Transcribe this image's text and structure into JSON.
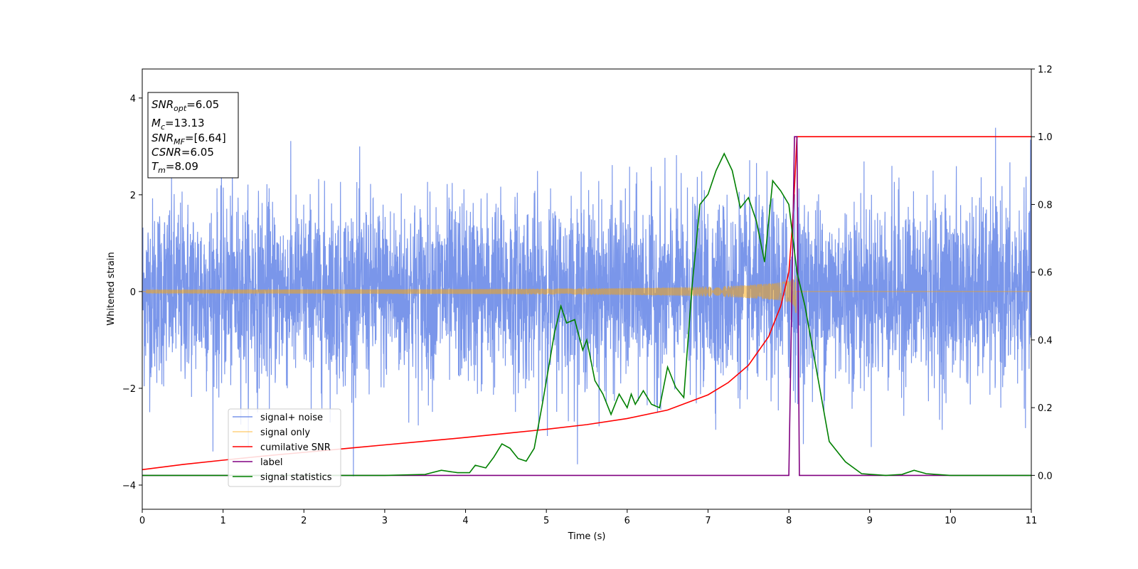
{
  "chart_data": {
    "type": "line",
    "xlabel": "Time (s)",
    "ylabel_left": "Whitened strain",
    "ylabel_right": "",
    "xlim": [
      0,
      11
    ],
    "ylim_left": [
      -4.5,
      4.6
    ],
    "ylim_right": [
      -0.1,
      1.2
    ],
    "xticks": [
      "0",
      "1",
      "2",
      "3",
      "4",
      "5",
      "6",
      "7",
      "8",
      "9",
      "10",
      "11"
    ],
    "yticks_left": [
      "−4",
      "−2",
      "0",
      "2",
      "4"
    ],
    "yticks_right": [
      "0.0",
      "0.2",
      "0.4",
      "0.6",
      "0.8",
      "1.0",
      "1.2"
    ],
    "grid": false,
    "legend_position": "lower-left",
    "annotation": {
      "lines": [
        {
          "main": "SNR",
          "sub": "opt",
          "rest": "=6.05"
        },
        {
          "main": "M",
          "sub": "c",
          "rest": "=13.13"
        },
        {
          "main": "SNR",
          "sub": "MF",
          "rest": "=[6.64]"
        },
        {
          "main": "CSNR",
          "sub": "",
          "rest": "=6.05"
        },
        {
          "main": "T",
          "sub": "m",
          "rest": "=8.09"
        }
      ]
    },
    "series": [
      {
        "name": "signal+ noise",
        "axis": "left",
        "color": "#4169e1",
        "opacity": 0.7,
        "style": "noise",
        "noise_std": 0.95,
        "noise_max": 4.18,
        "noise_min": -4.02,
        "sample_rate_hz": 400
      },
      {
        "name": "signal only",
        "axis": "left",
        "color": "#ffa500",
        "opacity": 0.5,
        "style": "chirp",
        "t_merge": 8.09,
        "amplitude_max": 0.5
      },
      {
        "name": "cumilative SNR",
        "axis": "right",
        "color": "#ff0000",
        "points": [
          [
            0,
            0.017
          ],
          [
            0.5,
            0.032
          ],
          [
            1,
            0.045
          ],
          [
            1.5,
            0.057
          ],
          [
            2,
            0.068
          ],
          [
            2.5,
            0.079
          ],
          [
            3,
            0.09
          ],
          [
            3.5,
            0.101
          ],
          [
            4,
            0.112
          ],
          [
            4.5,
            0.124
          ],
          [
            5,
            0.136
          ],
          [
            5.5,
            0.15
          ],
          [
            6,
            0.168
          ],
          [
            6.5,
            0.193
          ],
          [
            7,
            0.238
          ],
          [
            7.25,
            0.274
          ],
          [
            7.5,
            0.325
          ],
          [
            7.75,
            0.41
          ],
          [
            7.9,
            0.5
          ],
          [
            8,
            0.6
          ],
          [
            8.05,
            0.76
          ],
          [
            8.08,
            0.9
          ],
          [
            8.1,
            1.0
          ],
          [
            11,
            1.0
          ]
        ]
      },
      {
        "name": "label",
        "axis": "right",
        "color": "#800080",
        "points": [
          [
            0,
            0
          ],
          [
            8.0,
            0
          ],
          [
            8.07,
            1.0
          ],
          [
            8.1,
            1.0
          ],
          [
            8.13,
            0
          ],
          [
            11,
            0
          ]
        ]
      },
      {
        "name": "signal statistics",
        "axis": "right",
        "color": "#008000",
        "points": [
          [
            0,
            0.0
          ],
          [
            1,
            0.0
          ],
          [
            2,
            0.0
          ],
          [
            2.5,
            0.0
          ],
          [
            3,
            0.0
          ],
          [
            3.5,
            0.003
          ],
          [
            3.7,
            0.015
          ],
          [
            3.9,
            0.008
          ],
          [
            4.05,
            0.008
          ],
          [
            4.12,
            0.03
          ],
          [
            4.25,
            0.022
          ],
          [
            4.35,
            0.054
          ],
          [
            4.45,
            0.093
          ],
          [
            4.55,
            0.08
          ],
          [
            4.65,
            0.05
          ],
          [
            4.75,
            0.042
          ],
          [
            4.85,
            0.08
          ],
          [
            4.95,
            0.21
          ],
          [
            5.05,
            0.35
          ],
          [
            5.1,
            0.42
          ],
          [
            5.18,
            0.5
          ],
          [
            5.25,
            0.45
          ],
          [
            5.35,
            0.46
          ],
          [
            5.45,
            0.37
          ],
          [
            5.5,
            0.4
          ],
          [
            5.6,
            0.28
          ],
          [
            5.7,
            0.24
          ],
          [
            5.8,
            0.18
          ],
          [
            5.9,
            0.24
          ],
          [
            6.0,
            0.2
          ],
          [
            6.05,
            0.24
          ],
          [
            6.1,
            0.21
          ],
          [
            6.2,
            0.25
          ],
          [
            6.3,
            0.21
          ],
          [
            6.4,
            0.2
          ],
          [
            6.5,
            0.32
          ],
          [
            6.6,
            0.26
          ],
          [
            6.7,
            0.23
          ],
          [
            6.8,
            0.55
          ],
          [
            6.9,
            0.8
          ],
          [
            7.0,
            0.83
          ],
          [
            7.1,
            0.9
          ],
          [
            7.2,
            0.95
          ],
          [
            7.3,
            0.9
          ],
          [
            7.4,
            0.79
          ],
          [
            7.5,
            0.82
          ],
          [
            7.6,
            0.75
          ],
          [
            7.7,
            0.63
          ],
          [
            7.8,
            0.87
          ],
          [
            7.9,
            0.84
          ],
          [
            8.0,
            0.8
          ],
          [
            8.1,
            0.6
          ],
          [
            8.2,
            0.5
          ],
          [
            8.35,
            0.3
          ],
          [
            8.5,
            0.1
          ],
          [
            8.7,
            0.04
          ],
          [
            8.9,
            0.005
          ],
          [
            9.2,
            0.0
          ],
          [
            9.4,
            0.003
          ],
          [
            9.55,
            0.015
          ],
          [
            9.7,
            0.005
          ],
          [
            10,
            0.0
          ],
          [
            10.5,
            0.0
          ],
          [
            11,
            0.0
          ]
        ]
      }
    ]
  }
}
